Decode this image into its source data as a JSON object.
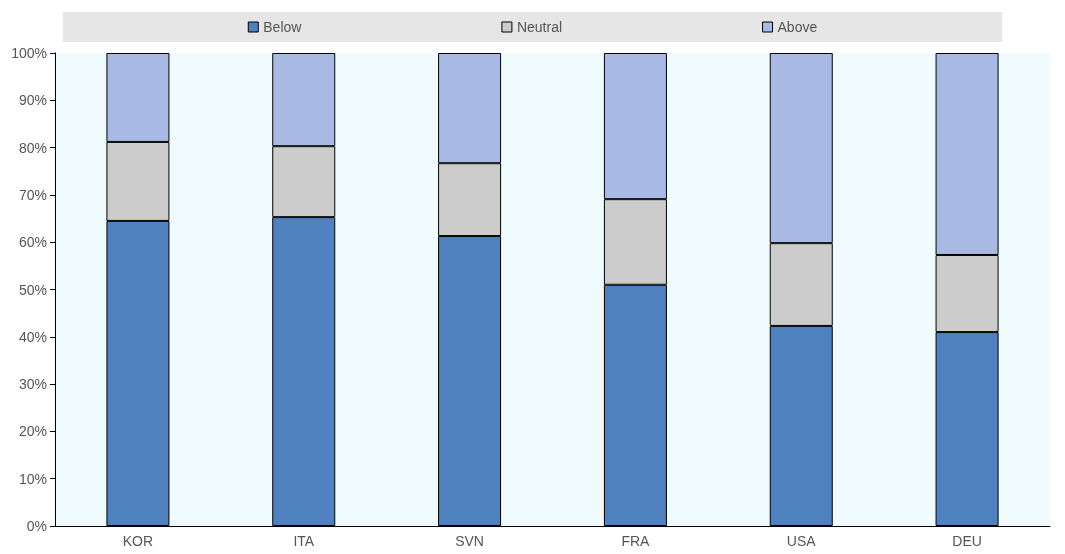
{
  "chart_data": {
    "type": "bar",
    "stacked": true,
    "legend": "top",
    "grid": false,
    "categories": [
      "KOR",
      "ITA",
      "SVN",
      "FRA",
      "USA",
      "DEU"
    ],
    "series": [
      {
        "name": "Below",
        "color": "#4e81bd",
        "values": [
          64.5,
          65.3,
          61.3,
          51.0,
          42.3,
          41.0
        ]
      },
      {
        "name": "Neutral",
        "color": "#cccccc",
        "values": [
          16.7,
          15.0,
          15.4,
          18.1,
          17.5,
          16.3
        ]
      },
      {
        "name": "Above",
        "color": "#a8b9e3",
        "values": [
          18.8,
          19.7,
          23.3,
          30.9,
          40.2,
          42.7
        ]
      }
    ],
    "ylim": [
      0,
      100
    ],
    "yticks": [
      {
        "value": 0,
        "label": "0%"
      },
      {
        "value": 10,
        "label": "10%"
      },
      {
        "value": 20,
        "label": "20%"
      },
      {
        "value": 30,
        "label": "30%"
      },
      {
        "value": 40,
        "label": "40%"
      },
      {
        "value": 50,
        "label": "50%"
      },
      {
        "value": 60,
        "label": "60%"
      },
      {
        "value": 70,
        "label": "70%"
      },
      {
        "value": 80,
        "label": "80%"
      },
      {
        "value": 90,
        "label": "90%"
      },
      {
        "value": 100,
        "label": "100%"
      }
    ]
  }
}
